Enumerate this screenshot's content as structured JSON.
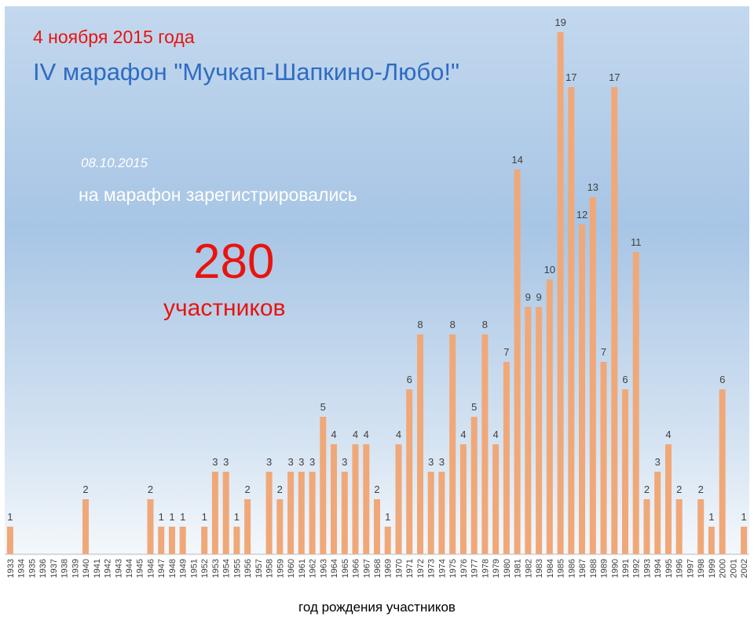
{
  "header": {
    "date_line": "4 ноября 2015 года",
    "title": "IV марафон \"Мучкап-Шапкино-Любо!\"",
    "registration_date": "08.10.2015",
    "registration_text": "на марафон зарегистрировались",
    "participants_count": "280",
    "participants_unit": "участников"
  },
  "colors": {
    "bar": "#f0a878",
    "label": "#404040",
    "axis": "#bfbfbf",
    "accent_red": "#e8140e",
    "title_blue": "#2f6cc2"
  },
  "chart_data": {
    "type": "bar",
    "categories": [
      "1933",
      "1934",
      "1935",
      "1936",
      "1937",
      "1938",
      "1939",
      "1940",
      "1941",
      "1942",
      "1943",
      "1944",
      "1945",
      "1946",
      "1947",
      "1948",
      "1949",
      "1951",
      "1952",
      "1953",
      "1954",
      "1955",
      "1956",
      "1957",
      "1958",
      "1959",
      "1960",
      "1961",
      "1962",
      "1963",
      "1964",
      "1965",
      "1966",
      "1967",
      "1968",
      "1969",
      "1970",
      "1971",
      "1972",
      "1973",
      "1974",
      "1975",
      "1976",
      "1977",
      "1978",
      "1979",
      "1980",
      "1981",
      "1982",
      "1983",
      "1984",
      "1985",
      "1986",
      "1987",
      "1988",
      "1989",
      "1990",
      "1991",
      "1992",
      "1993",
      "1994",
      "1995",
      "1996",
      "1997",
      "1998",
      "1999",
      "2000",
      "2001",
      "2002"
    ],
    "values": [
      1,
      0,
      0,
      0,
      0,
      0,
      0,
      2,
      0,
      0,
      0,
      0,
      0,
      2,
      1,
      1,
      1,
      0,
      1,
      3,
      3,
      1,
      2,
      0,
      3,
      2,
      3,
      3,
      3,
      5,
      4,
      3,
      4,
      4,
      2,
      1,
      4,
      6,
      8,
      3,
      3,
      8,
      4,
      5,
      8,
      4,
      7,
      14,
      9,
      9,
      10,
      19,
      17,
      12,
      13,
      7,
      17,
      6,
      11,
      2,
      3,
      4,
      2,
      0,
      2,
      1,
      6,
      0,
      1
    ],
    "xlabel": "год рождения участников",
    "ylabel": "",
    "ylim": [
      0,
      20
    ],
    "grid": false,
    "data_labels": true
  }
}
